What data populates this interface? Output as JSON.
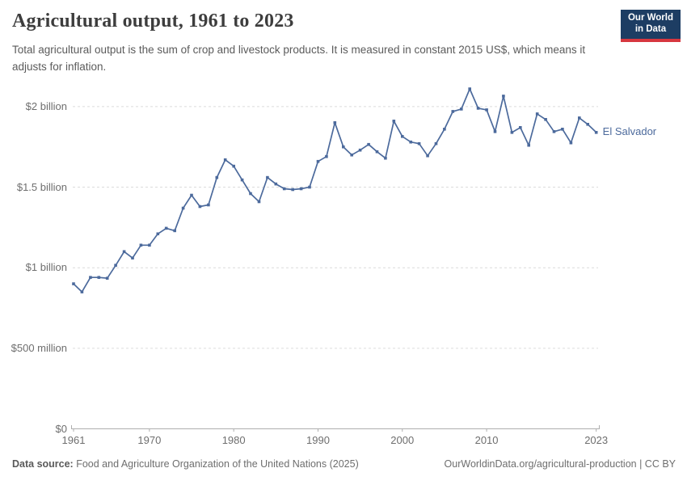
{
  "header": {
    "title": "Agricultural output, 1961 to 2023",
    "subtitle": "Total agricultural output is the sum of crop and livestock products. It is measured in constant 2015 US$, which means it adjusts for inflation."
  },
  "logo": {
    "line1": "Our World",
    "line2": "in Data"
  },
  "chart_data": {
    "type": "line",
    "title": "Agricultural output, 1961 to 2023",
    "unit": "constant 2015 US$",
    "grid": true,
    "legend_position": "right-end-of-line",
    "xlim": [
      1961,
      2023
    ],
    "ylim": [
      0,
      2.14
    ],
    "x_ticks": [
      1961,
      1970,
      1980,
      1990,
      2000,
      2010,
      2023
    ],
    "y_ticks": [
      {
        "value": 0,
        "label": "$0"
      },
      {
        "value": 0.5,
        "label": "$500 million"
      },
      {
        "value": 1,
        "label": "$1 billion"
      },
      {
        "value": 1.5,
        "label": "$1.5 billion"
      },
      {
        "value": 2,
        "label": "$2 billion"
      }
    ],
    "series": [
      {
        "name": "El Salvador",
        "color": "#4C6A9C",
        "x": [
          1961,
          1962,
          1963,
          1964,
          1965,
          1966,
          1967,
          1968,
          1969,
          1970,
          1971,
          1972,
          1973,
          1974,
          1975,
          1976,
          1977,
          1978,
          1979,
          1980,
          1981,
          1982,
          1983,
          1984,
          1985,
          1986,
          1987,
          1988,
          1989,
          1990,
          1991,
          1992,
          1993,
          1994,
          1995,
          1996,
          1997,
          1998,
          1999,
          2000,
          2001,
          2002,
          2003,
          2004,
          2005,
          2006,
          2007,
          2008,
          2009,
          2010,
          2011,
          2012,
          2013,
          2014,
          2015,
          2016,
          2017,
          2018,
          2019,
          2020,
          2021,
          2022,
          2023
        ],
        "values_billion_usd": [
          0.9,
          0.85,
          0.94,
          0.94,
          0.935,
          1.015,
          1.1,
          1.06,
          1.14,
          1.14,
          1.21,
          1.245,
          1.23,
          1.37,
          1.45,
          1.38,
          1.39,
          1.56,
          1.67,
          1.63,
          1.545,
          1.46,
          1.41,
          1.56,
          1.52,
          1.49,
          1.485,
          1.49,
          1.5,
          1.66,
          1.69,
          1.9,
          1.75,
          1.7,
          1.73,
          1.765,
          1.72,
          1.68,
          1.91,
          1.815,
          1.78,
          1.77,
          1.695,
          1.77,
          1.86,
          1.97,
          1.985,
          2.11,
          1.99,
          1.98,
          1.845,
          2.065,
          1.84,
          1.87,
          1.76,
          1.955,
          1.92,
          1.845,
          1.86,
          1.775,
          1.93,
          1.89,
          1.84
        ]
      }
    ],
    "colors": {
      "line": "#4C6A9C",
      "gridline": "#dcdcdc",
      "axis": "#aeaeae",
      "tick_text": "#6e6e6e"
    }
  },
  "footer": {
    "source_label": "Data source:",
    "source_text": "Food and Agriculture Organization of the United Nations (2025)",
    "url_text": "OurWorldinData.org/agricultural-production | CC BY"
  }
}
